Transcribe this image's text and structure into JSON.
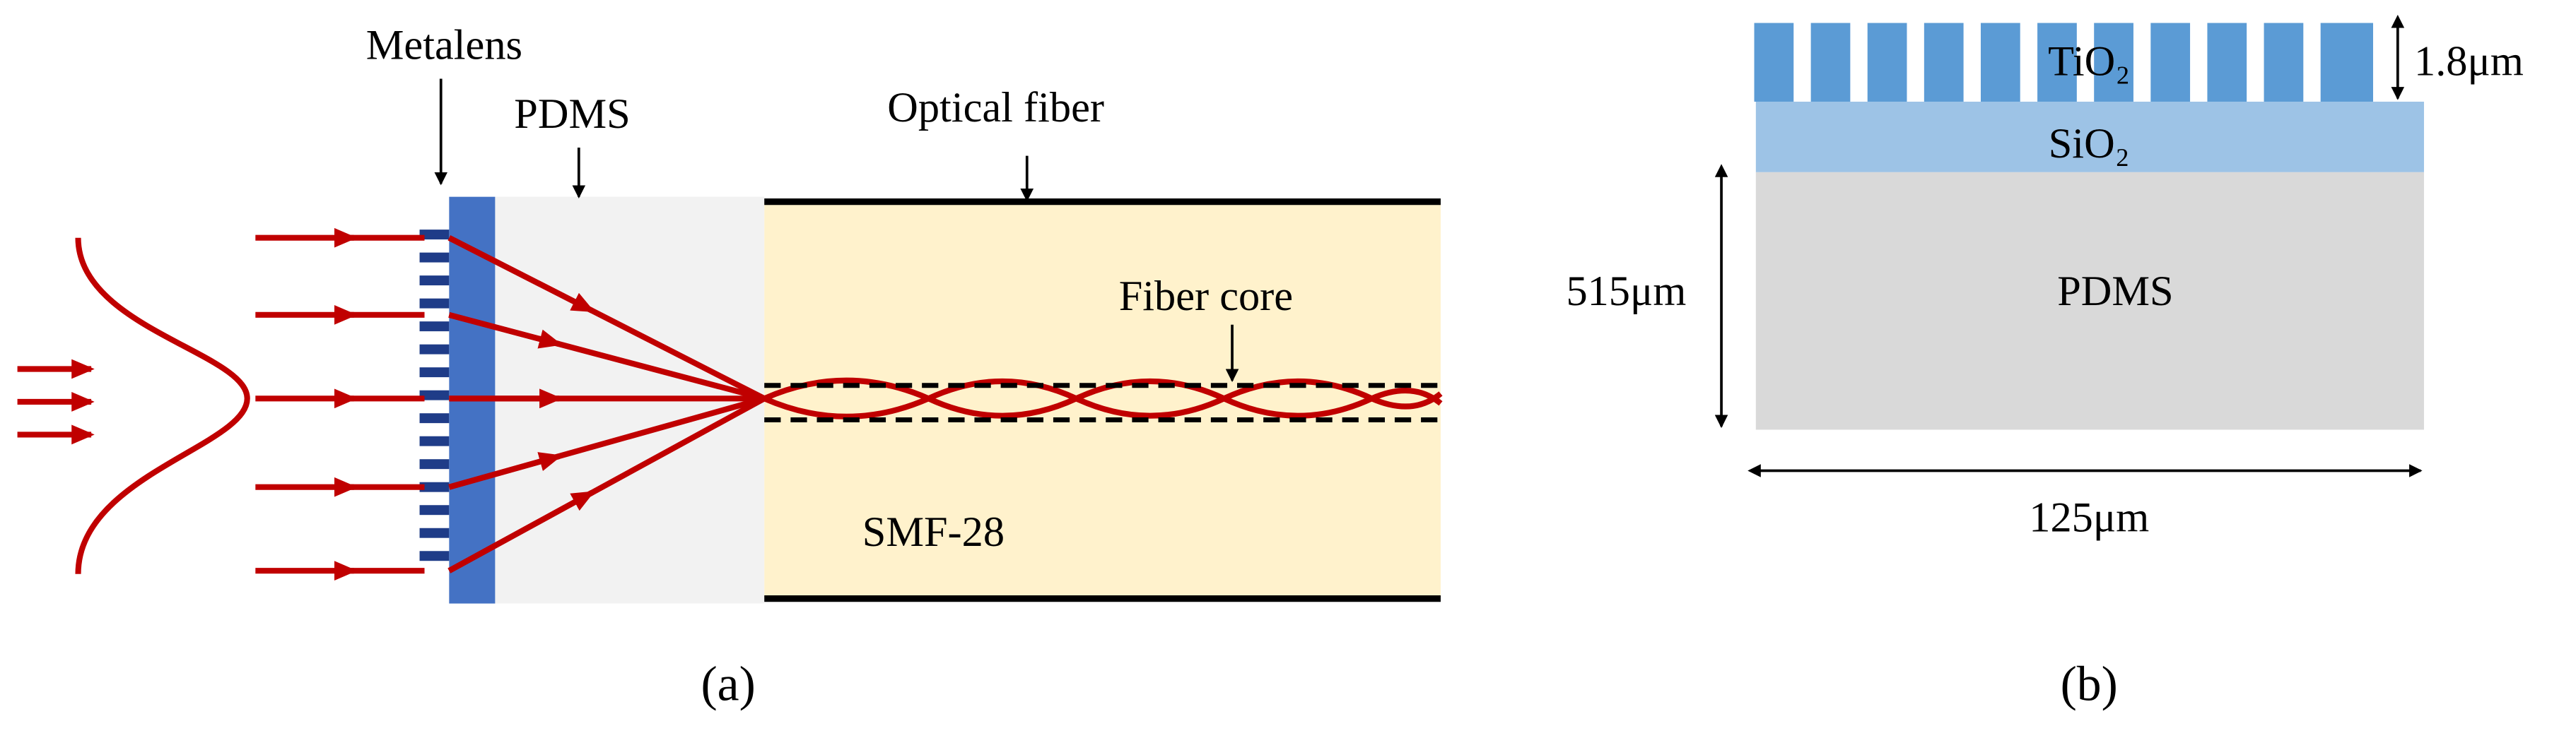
{
  "panel_a": {
    "labels": {
      "metalens": "Metalens",
      "pdms": "PDMS",
      "optical_fiber": "Optical fiber",
      "fiber_core": "Fiber core",
      "fiber_type": "SMF-28"
    },
    "caption": "(a)"
  },
  "panel_b": {
    "labels": {
      "tio2": "TiO₂",
      "sio2": "SiO₂",
      "pdms": "PDMS"
    },
    "dimensions": {
      "pillar_height": "1.8μm",
      "thickness": "515μm",
      "width": "125μm"
    },
    "caption": "(b)"
  }
}
